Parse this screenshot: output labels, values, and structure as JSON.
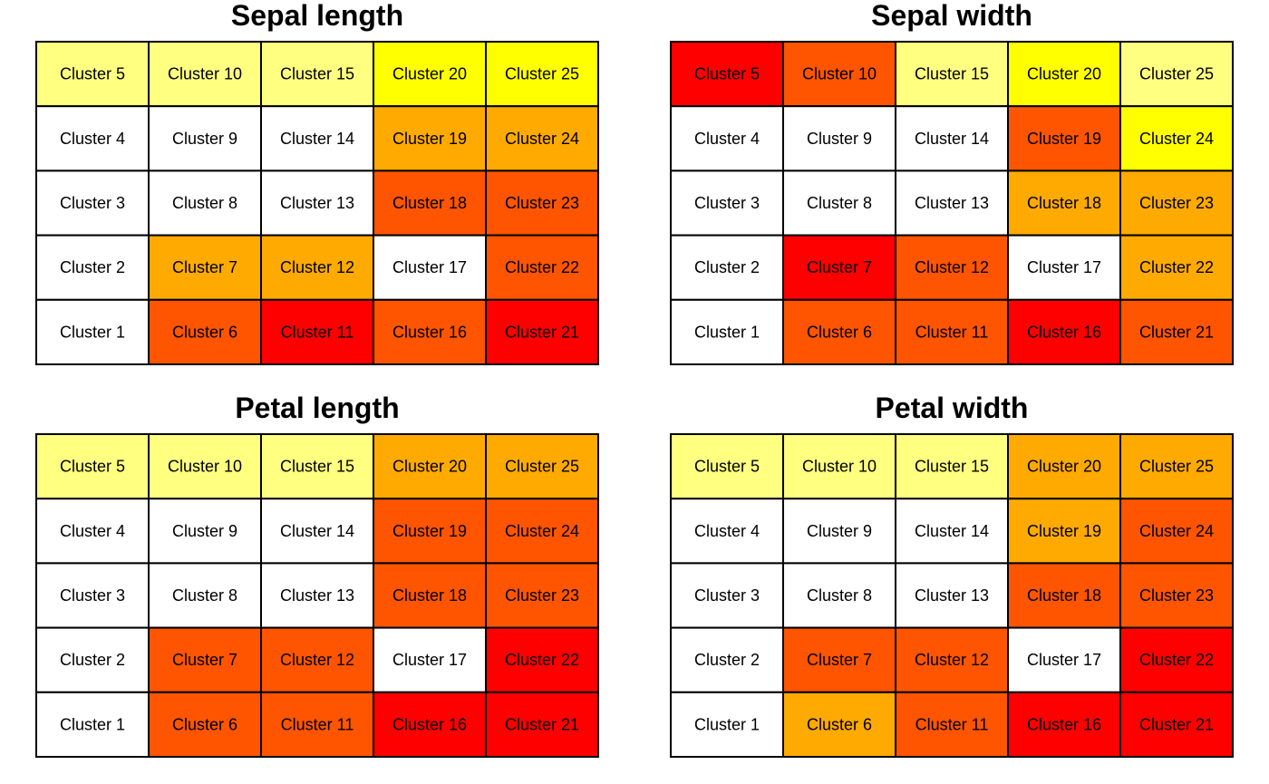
{
  "chart_data": [
    {
      "type": "heatmap",
      "title": "Sepal length",
      "grid": {
        "columns": 5,
        "rows": 5
      },
      "rows_top_to_bottom": [
        [
          "Cluster 5",
          "Cluster 10",
          "Cluster 15",
          "Cluster 20",
          "Cluster 25"
        ],
        [
          "Cluster 4",
          "Cluster 9",
          "Cluster 14",
          "Cluster 19",
          "Cluster 24"
        ],
        [
          "Cluster 3",
          "Cluster 8",
          "Cluster 13",
          "Cluster 18",
          "Cluster 23"
        ],
        [
          "Cluster 2",
          "Cluster 7",
          "Cluster 12",
          "Cluster 17",
          "Cluster 22"
        ],
        [
          "Cluster 1",
          "Cluster 6",
          "Cluster 11",
          "Cluster 16",
          "Cluster 21"
        ]
      ],
      "colors_top_to_bottom": [
        [
          "#FFFF80",
          "#FFFF80",
          "#FFFF80",
          "#FFFF00",
          "#FFFF00"
        ],
        [
          "#FFFFFF",
          "#FFFFFF",
          "#FFFFFF",
          "#FFAA00",
          "#FFAA00"
        ],
        [
          "#FFFFFF",
          "#FFFFFF",
          "#FFFFFF",
          "#FF5500",
          "#FF5500"
        ],
        [
          "#FFFFFF",
          "#FFAA00",
          "#FFAA00",
          "#FFFFFF",
          "#FF5500"
        ],
        [
          "#FFFFFF",
          "#FF5500",
          "#FF0000",
          "#FF5500",
          "#FF0000"
        ]
      ]
    },
    {
      "type": "heatmap",
      "title": "Sepal width",
      "grid": {
        "columns": 5,
        "rows": 5
      },
      "rows_top_to_bottom": [
        [
          "Cluster 5",
          "Cluster 10",
          "Cluster 15",
          "Cluster 20",
          "Cluster 25"
        ],
        [
          "Cluster 4",
          "Cluster 9",
          "Cluster 14",
          "Cluster 19",
          "Cluster 24"
        ],
        [
          "Cluster 3",
          "Cluster 8",
          "Cluster 13",
          "Cluster 18",
          "Cluster 23"
        ],
        [
          "Cluster 2",
          "Cluster 7",
          "Cluster 12",
          "Cluster 17",
          "Cluster 22"
        ],
        [
          "Cluster 1",
          "Cluster 6",
          "Cluster 11",
          "Cluster 16",
          "Cluster 21"
        ]
      ],
      "colors_top_to_bottom": [
        [
          "#FF0000",
          "#FF5500",
          "#FFFF80",
          "#FFFF00",
          "#FFFF80"
        ],
        [
          "#FFFFFF",
          "#FFFFFF",
          "#FFFFFF",
          "#FF5500",
          "#FFFF00"
        ],
        [
          "#FFFFFF",
          "#FFFFFF",
          "#FFFFFF",
          "#FFAA00",
          "#FFAA00"
        ],
        [
          "#FFFFFF",
          "#FF0000",
          "#FF5500",
          "#FFFFFF",
          "#FFAA00"
        ],
        [
          "#FFFFFF",
          "#FF5500",
          "#FF5500",
          "#FF0000",
          "#FF5500"
        ]
      ]
    },
    {
      "type": "heatmap",
      "title": "Petal length",
      "grid": {
        "columns": 5,
        "rows": 5
      },
      "rows_top_to_bottom": [
        [
          "Cluster 5",
          "Cluster 10",
          "Cluster 15",
          "Cluster 20",
          "Cluster 25"
        ],
        [
          "Cluster 4",
          "Cluster 9",
          "Cluster 14",
          "Cluster 19",
          "Cluster 24"
        ],
        [
          "Cluster 3",
          "Cluster 8",
          "Cluster 13",
          "Cluster 18",
          "Cluster 23"
        ],
        [
          "Cluster 2",
          "Cluster 7",
          "Cluster 12",
          "Cluster 17",
          "Cluster 22"
        ],
        [
          "Cluster 1",
          "Cluster 6",
          "Cluster 11",
          "Cluster 16",
          "Cluster 21"
        ]
      ],
      "colors_top_to_bottom": [
        [
          "#FFFF80",
          "#FFFF80",
          "#FFFF80",
          "#FFAA00",
          "#FFAA00"
        ],
        [
          "#FFFFFF",
          "#FFFFFF",
          "#FFFFFF",
          "#FF5500",
          "#FF5500"
        ],
        [
          "#FFFFFF",
          "#FFFFFF",
          "#FFFFFF",
          "#FF5500",
          "#FF5500"
        ],
        [
          "#FFFFFF",
          "#FF5500",
          "#FF5500",
          "#FFFFFF",
          "#FF0000"
        ],
        [
          "#FFFFFF",
          "#FF5500",
          "#FF5500",
          "#FF0000",
          "#FF0000"
        ]
      ]
    },
    {
      "type": "heatmap",
      "title": "Petal width",
      "grid": {
        "columns": 5,
        "rows": 5
      },
      "rows_top_to_bottom": [
        [
          "Cluster 5",
          "Cluster 10",
          "Cluster 15",
          "Cluster 20",
          "Cluster 25"
        ],
        [
          "Cluster 4",
          "Cluster 9",
          "Cluster 14",
          "Cluster 19",
          "Cluster 24"
        ],
        [
          "Cluster 3",
          "Cluster 8",
          "Cluster 13",
          "Cluster 18",
          "Cluster 23"
        ],
        [
          "Cluster 2",
          "Cluster 7",
          "Cluster 12",
          "Cluster 17",
          "Cluster 22"
        ],
        [
          "Cluster 1",
          "Cluster 6",
          "Cluster 11",
          "Cluster 16",
          "Cluster 21"
        ]
      ],
      "colors_top_to_bottom": [
        [
          "#FFFF80",
          "#FFFF80",
          "#FFFF80",
          "#FFAA00",
          "#FFAA00"
        ],
        [
          "#FFFFFF",
          "#FFFFFF",
          "#FFFFFF",
          "#FFAA00",
          "#FF5500"
        ],
        [
          "#FFFFFF",
          "#FFFFFF",
          "#FFFFFF",
          "#FF5500",
          "#FF5500"
        ],
        [
          "#FFFFFF",
          "#FF5500",
          "#FF5500",
          "#FFFFFF",
          "#FF0000"
        ],
        [
          "#FFFFFF",
          "#FFAA00",
          "#FF5500",
          "#FF0000",
          "#FF0000"
        ]
      ]
    }
  ]
}
